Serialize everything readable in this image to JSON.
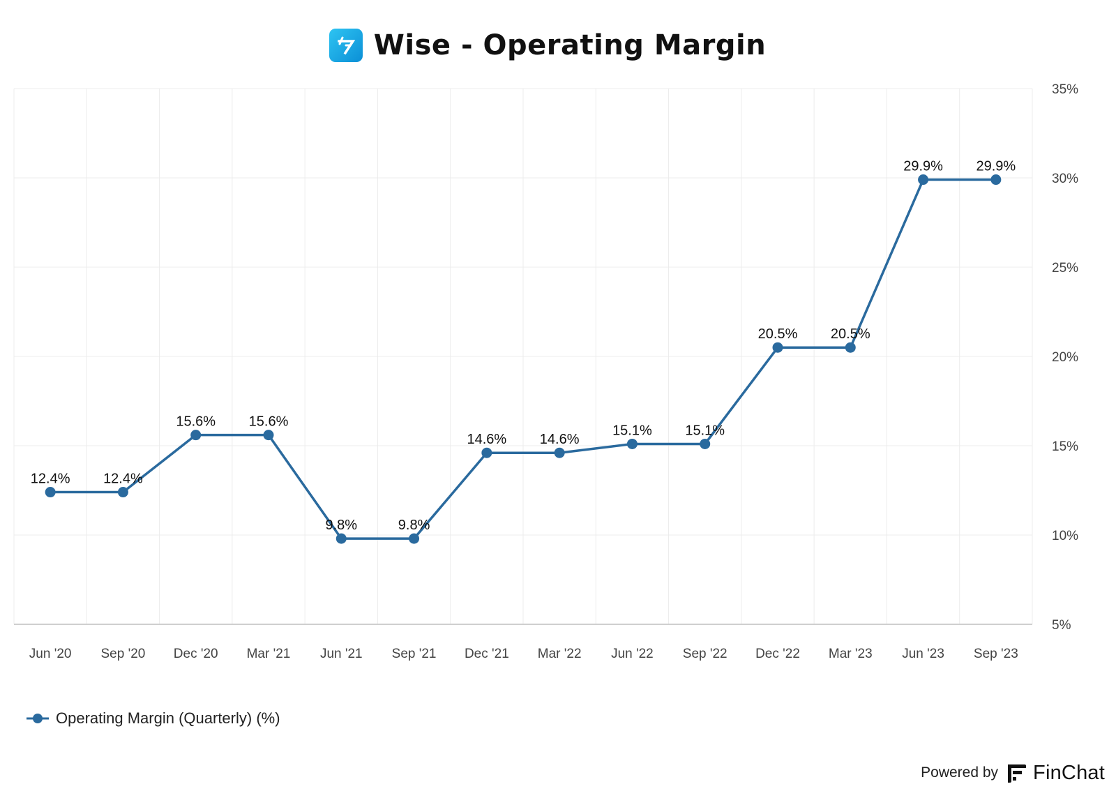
{
  "header": {
    "title": "Wise - Operating Margin",
    "logo_icon": "wise-logo-icon",
    "logo_color": "#1aa7e6"
  },
  "chart_data": {
    "type": "line",
    "title": "Wise - Operating Margin",
    "xlabel": "",
    "ylabel": "",
    "categories": [
      "Jun '20",
      "Sep '20",
      "Dec '20",
      "Mar '21",
      "Jun '21",
      "Sep '21",
      "Dec '21",
      "Mar '22",
      "Jun '22",
      "Sep '22",
      "Dec '22",
      "Mar '23",
      "Jun '23",
      "Sep '23"
    ],
    "series": [
      {
        "name": "Operating Margin (Quarterly) (%)",
        "values": [
          12.4,
          12.4,
          15.6,
          15.6,
          9.8,
          9.8,
          14.6,
          14.6,
          15.1,
          15.1,
          20.5,
          20.5,
          29.9,
          29.9
        ],
        "data_labels": [
          "12.4%",
          "12.4%",
          "15.6%",
          "15.6%",
          "9.8%",
          "9.8%",
          "14.6%",
          "14.6%",
          "15.1%",
          "15.1%",
          "20.5%",
          "20.5%",
          "29.9%",
          "29.9%"
        ],
        "color": "#2a6a9e"
      }
    ],
    "ylim": [
      5,
      35
    ],
    "y_ticks": [
      5,
      10,
      15,
      20,
      25,
      30,
      35
    ],
    "y_tick_labels": [
      "5%",
      "10%",
      "15%",
      "20%",
      "25%",
      "30%",
      "35%"
    ],
    "y_axis_position": "right",
    "grid": true,
    "legend_position": "bottom-left"
  },
  "legend": {
    "label": "Operating Margin (Quarterly) (%)"
  },
  "footer": {
    "powered_by": "Powered by",
    "brand": "FinChat",
    "brand_icon": "finchat-logo-icon"
  }
}
